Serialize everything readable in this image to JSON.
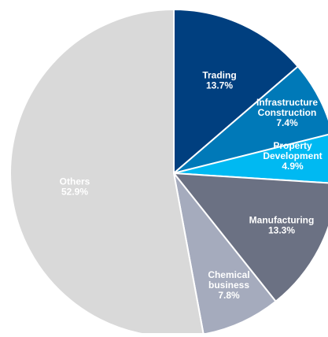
{
  "chart_data": {
    "type": "pie",
    "slices": [
      {
        "label_lines": [
          "Trading"
        ],
        "value": 13.7,
        "value_label": "13.7%",
        "color": "#003f7f"
      },
      {
        "label_lines": [
          "Infrastructure",
          "Construction"
        ],
        "value": 7.4,
        "value_label": "7.4%",
        "color": "#0079b8"
      },
      {
        "label_lines": [
          "Property",
          "Development"
        ],
        "value": 4.9,
        "value_label": "4.9%",
        "color": "#00b9f2"
      },
      {
        "label_lines": [
          "Manufacturing"
        ],
        "value": 13.3,
        "value_label": "13.3%",
        "color": "#6b7183"
      },
      {
        "label_lines": [
          "Chemical",
          "business"
        ],
        "value": 7.8,
        "value_label": "7.8%",
        "color": "#a5abbd"
      },
      {
        "label_lines": [
          "Others"
        ],
        "value": 52.9,
        "value_label": "52.9%",
        "color": "#d9d9d9"
      }
    ],
    "start_angle_deg": 0,
    "direction": "clockwise",
    "legend": "none",
    "labels_inside": true
  }
}
